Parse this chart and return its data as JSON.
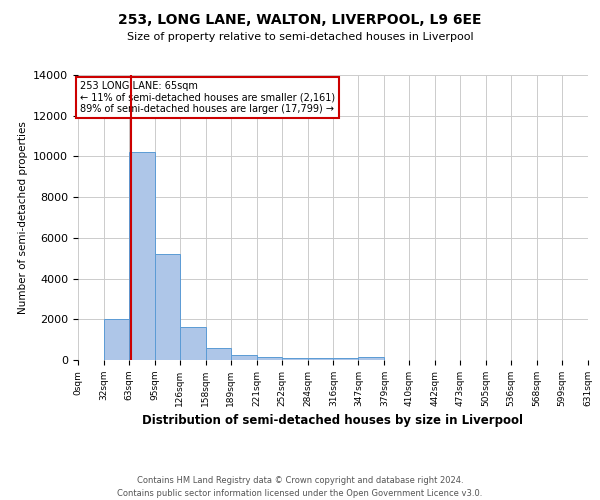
{
  "title": "253, LONG LANE, WALTON, LIVERPOOL, L9 6EE",
  "subtitle": "Size of property relative to semi-detached houses in Liverpool",
  "xlabel": "Distribution of semi-detached houses by size in Liverpool",
  "ylabel": "Number of semi-detached properties",
  "footnote1": "Contains HM Land Registry data © Crown copyright and database right 2024.",
  "footnote2": "Contains public sector information licensed under the Open Government Licence v3.0.",
  "property_label": "253 LONG LANE: 65sqm",
  "annotation_line1": "← 11% of semi-detached houses are smaller (2,161)",
  "annotation_line2": "89% of semi-detached houses are larger (17,799) →",
  "property_size": 65,
  "bin_edges": [
    0,
    32,
    63,
    95,
    126,
    158,
    189,
    221,
    252,
    284,
    316,
    347,
    379,
    410,
    442,
    473,
    505,
    536,
    568,
    599,
    631
  ],
  "bar_heights": [
    0,
    2000,
    10200,
    5200,
    1600,
    600,
    250,
    150,
    100,
    100,
    100,
    150,
    0,
    0,
    0,
    0,
    0,
    0,
    0,
    0
  ],
  "bar_color": "#aec6e8",
  "bar_edge_color": "#5b9bd5",
  "red_line_color": "#cc0000",
  "annotation_box_color": "#cc0000",
  "background_color": "#ffffff",
  "grid_color": "#cccccc",
  "ylim": [
    0,
    14000
  ],
  "yticks": [
    0,
    2000,
    4000,
    6000,
    8000,
    10000,
    12000,
    14000
  ]
}
